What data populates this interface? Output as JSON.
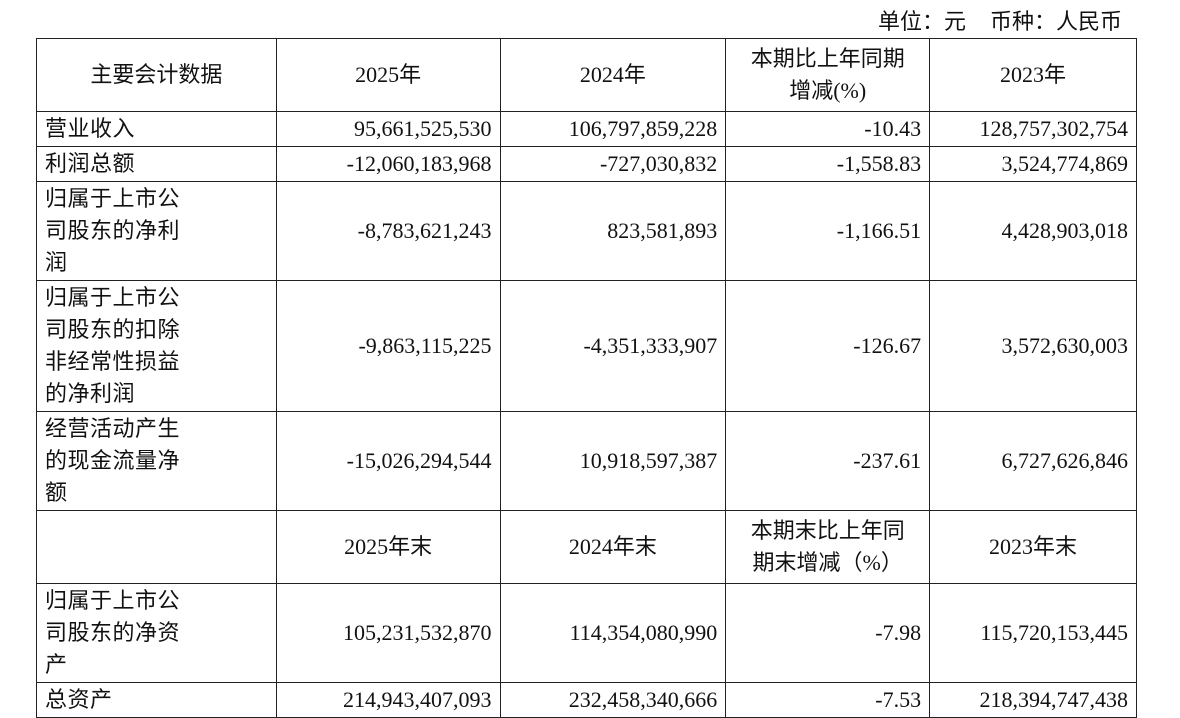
{
  "unit": [
    "单位：元",
    "币种：人民币"
  ],
  "table": {
    "sections": [
      {
        "header": [
          "主要会计数据",
          "2025年",
          "2024年",
          "本期比上年同期增减(%)",
          "2023年"
        ],
        "rows": [
          [
            "营业收入",
            "95,661,525,530",
            "106,797,859,228",
            "-10.43",
            "128,757,302,754"
          ],
          [
            "利润总额",
            "-12,060,183,968",
            "-727,030,832",
            "-1,558.83",
            "3,524,774,869"
          ],
          [
            "归属于上市公司股东的净利润",
            "-8,783,621,243",
            "823,581,893",
            "-1,166.51",
            "4,428,903,018"
          ],
          [
            "归属于上市公司股东的扣除非经常性损益的净利润",
            "-9,863,115,225",
            "-4,351,333,907",
            "-126.67",
            "3,572,630,003"
          ],
          [
            "经营活动产生的现金流量净额",
            "-15,026,294,544",
            "10,918,597,387",
            "-237.61",
            "6,727,626,846"
          ]
        ]
      },
      {
        "header": [
          null,
          "2025年末",
          "2024年末",
          "本期末比上年同期末增减（%）",
          "2023年末"
        ],
        "rows": [
          [
            "归属于上市公司股东的净资产",
            "105,231,532,870",
            "114,354,080,990",
            "-7.98",
            "115,720,153,445"
          ],
          [
            "总资产",
            "214,943,407,093",
            "232,458,340,666",
            "-7.53",
            "218,394,747,438"
          ]
        ]
      }
    ]
  }
}
